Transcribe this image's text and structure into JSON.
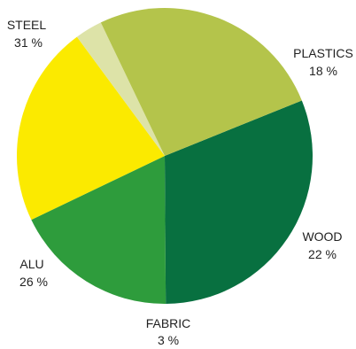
{
  "chart_data": {
    "type": "pie",
    "title": "",
    "legend": "none",
    "series": [
      {
        "name": "STEEL",
        "value": 31,
        "label": "31 %",
        "color": "#087040"
      },
      {
        "name": "PLASTICS",
        "value": 18,
        "label": "18 %",
        "color": "#2e9c3c"
      },
      {
        "name": "WOOD",
        "value": 22,
        "label": "22 %",
        "color": "#fbea00"
      },
      {
        "name": "FABRIC",
        "value": 3,
        "label": "3 %",
        "color": "#dde3a8"
      },
      {
        "name": "ALU",
        "value": 26,
        "label": "26 %",
        "color": "#b4c44b"
      }
    ]
  }
}
